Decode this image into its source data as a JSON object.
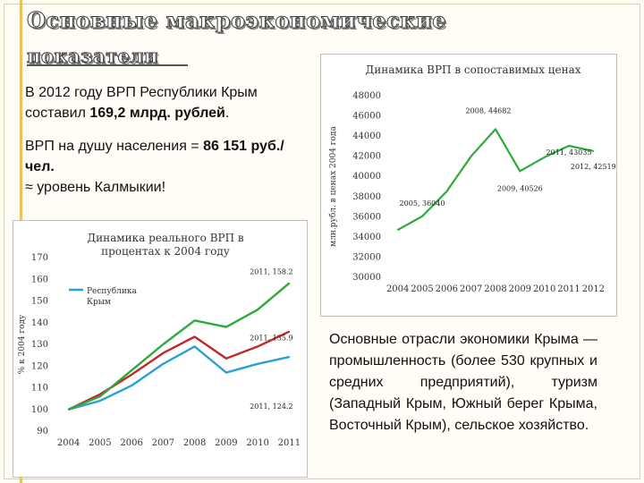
{
  "slide": {
    "title_line1": "Основные макроэкономические",
    "title_line2": "показатели",
    "text1_pre": "В 2012 году ВРП Республики Крым составил ",
    "text1_value": "169,2 млрд. рублей",
    "text1_post": ".",
    "text2_pre": "ВРП на душу населения = ",
    "text2_value": "86 151 руб./чел.",
    "text3": "≈ уровень Калмыкии!",
    "text4": "Основные отрасли экономики Крыма — промышленность (более 530 крупных и средних предприятий), туризм (Западный Крым, Южный берег Крыма, Восточный Крым), сельское хозяйство."
  },
  "chart_data": [
    {
      "type": "line",
      "title": "Динамика ВРП в сопоставимых ценах",
      "ylabel": "млн.рубл. в ценах 2004 года",
      "x": [
        "2004",
        "2005",
        "2006",
        "2007",
        "2008",
        "2009",
        "2010",
        "2011",
        "2012"
      ],
      "ylim": [
        30000,
        48000
      ],
      "yticks": [
        30000,
        32000,
        34000,
        36000,
        38000,
        40000,
        42000,
        44000,
        46000,
        48000
      ],
      "series": [
        {
          "color": "#2eaa3a",
          "values": [
            34700,
            36040,
            38500,
            42000,
            44682,
            40526,
            41900,
            43035,
            42519
          ]
        }
      ],
      "annotations": [
        {
          "text": "2005, 36040",
          "xi": 1,
          "y": 36040
        },
        {
          "text": "2008, 44682",
          "xi": 4,
          "y": 44682
        },
        {
          "text": "2009, 40526",
          "xi": 5,
          "y": 40526
        },
        {
          "text": "2011, 43035",
          "xi": 7,
          "y": 43035
        },
        {
          "text": "2012, 42519",
          "xi": 8,
          "y": 42519
        }
      ],
      "grid": false
    },
    {
      "type": "line",
      "title": "Динамика реального ВРП в процентах к 2004 году",
      "ylabel": "% к 2004 году",
      "x": [
        "2004",
        "2005",
        "2006",
        "2007",
        "2008",
        "2009",
        "2010",
        "2011"
      ],
      "ylim": [
        90,
        170
      ],
      "yticks": [
        90,
        100,
        110,
        120,
        130,
        140,
        150,
        160,
        170
      ],
      "legend_position": "upper-left",
      "series": [
        {
          "name": "Республика Крым",
          "color": "#2a9fd8",
          "values": [
            100,
            104,
            111,
            121,
            129,
            117,
            121,
            124.2
          ]
        },
        {
          "color": "#c0282d",
          "values": [
            100,
            107,
            116,
            126,
            133.5,
            123.5,
            129,
            135.9
          ]
        },
        {
          "color": "#2eaa3a",
          "values": [
            100,
            106,
            118,
            130,
            141,
            138,
            146,
            158.2
          ]
        }
      ],
      "annotations": [
        {
          "text": "2011, 158.2",
          "xi": 7,
          "y": 158.2
        },
        {
          "text": "2011, 135.9",
          "xi": 7,
          "y": 135.9
        },
        {
          "text": "2011, 124.2",
          "xi": 7,
          "y": 124.2
        }
      ],
      "grid": false
    }
  ]
}
